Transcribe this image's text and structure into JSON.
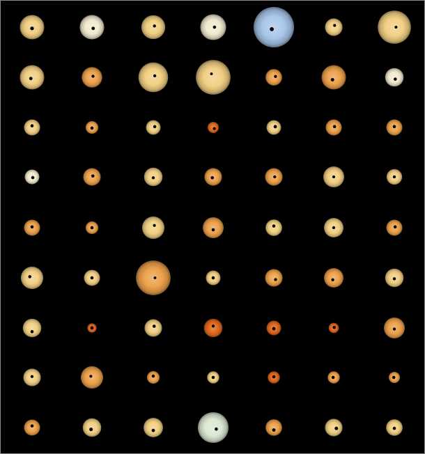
{
  "grid": {
    "rows": 9,
    "columns": 7
  },
  "palette": {
    "background": "#000000",
    "transit_dot": "#000000",
    "star_colors": {
      "yellow": "#f1cf84",
      "orange": "#eca14c",
      "red_orange": "#e2681c",
      "pale": "#f2ead0",
      "blue": "#a9c7ea",
      "mint": "#dbe8d2"
    }
  },
  "stars": [
    [
      {
        "size": 0.5,
        "color": "yellow",
        "dot": [
          0.5,
          0.55
        ],
        "dot_size": 0.6
      },
      {
        "size": 0.5,
        "color": "pale",
        "dot": [
          0.55,
          0.55
        ],
        "dot_size": 0.5
      },
      {
        "size": 0.49,
        "color": "yellow",
        "dot": [
          0.55,
          0.45
        ],
        "dot_size": 0.4
      },
      {
        "size": 0.53,
        "color": "pale",
        "dot": [
          0.55,
          0.5
        ],
        "dot_size": 0.45
      },
      {
        "size": 0.83,
        "color": "blue",
        "dot": [
          0.45,
          0.55
        ],
        "dot_size": 0.7
      },
      {
        "size": 0.36,
        "color": "yellow",
        "dot": [
          0.55,
          0.4
        ],
        "dot_size": 0.4
      },
      {
        "size": 0.68,
        "color": "yellow",
        "dot": [
          0.55,
          0.5
        ],
        "dot_size": 0.35
      }
    ],
    [
      {
        "size": 0.5,
        "color": "yellow",
        "dot": [
          0.45,
          0.55
        ],
        "dot_size": 0.5
      },
      {
        "size": 0.42,
        "color": "orange",
        "dot": [
          0.55,
          0.45
        ],
        "dot_size": 0.4
      },
      {
        "size": 0.61,
        "color": "yellow",
        "dot": [
          0.55,
          0.45
        ],
        "dot_size": 0.4
      },
      {
        "size": 0.71,
        "color": "yellow",
        "dot": [
          0.45,
          0.4
        ],
        "dot_size": 0.3
      },
      {
        "size": 0.34,
        "color": "orange",
        "dot": [
          0.6,
          0.45
        ],
        "dot_size": 0.4
      },
      {
        "size": 0.5,
        "color": "orange",
        "dot": [
          0.45,
          0.6
        ],
        "dot_size": 0.5
      },
      {
        "size": 0.38,
        "color": "pale",
        "dot": [
          0.55,
          0.6
        ],
        "dot_size": 0.45
      }
    ],
    [
      {
        "size": 0.33,
        "color": "yellow",
        "dot": [
          0.5,
          0.4
        ],
        "dot_size": 0.45
      },
      {
        "size": 0.26,
        "color": "orange",
        "dot": [
          0.5,
          0.55
        ],
        "dot_size": 0.45
      },
      {
        "size": 0.3,
        "color": "yellow",
        "dot": [
          0.6,
          0.45
        ],
        "dot_size": 0.45
      },
      {
        "size": 0.23,
        "color": "red_orange",
        "dot": [
          0.6,
          0.6
        ],
        "dot_size": 0.4
      },
      {
        "size": 0.3,
        "color": "yellow",
        "dot": [
          0.6,
          0.45
        ],
        "dot_size": 0.5
      },
      {
        "size": 0.33,
        "color": "orange",
        "dot": [
          0.55,
          0.45
        ],
        "dot_size": 0.45
      },
      {
        "size": 0.33,
        "color": "orange",
        "dot": [
          0.5,
          0.45
        ],
        "dot_size": 0.45
      }
    ],
    [
      {
        "size": 0.3,
        "color": "pale",
        "dot": [
          0.55,
          0.55
        ],
        "dot_size": 0.45
      },
      {
        "size": 0.36,
        "color": "orange",
        "dot": [
          0.55,
          0.45
        ],
        "dot_size": 0.45
      },
      {
        "size": 0.38,
        "color": "yellow",
        "dot": [
          0.5,
          0.55
        ],
        "dot_size": 0.4
      },
      {
        "size": 0.36,
        "color": "orange",
        "dot": [
          0.45,
          0.55
        ],
        "dot_size": 0.45
      },
      {
        "size": 0.36,
        "color": "orange",
        "dot": [
          0.55,
          0.5
        ],
        "dot_size": 0.4
      },
      {
        "size": 0.43,
        "color": "yellow",
        "dot": [
          0.5,
          0.5
        ],
        "dot_size": 0.35
      },
      {
        "size": 0.32,
        "color": "yellow",
        "dot": [
          0.5,
          0.5
        ],
        "dot_size": 0.4
      }
    ],
    [
      {
        "size": 0.33,
        "color": "orange",
        "dot": [
          0.5,
          0.45
        ],
        "dot_size": 0.45
      },
      {
        "size": 0.26,
        "color": "orange",
        "dot": [
          0.5,
          0.5
        ],
        "dot_size": 0.45
      },
      {
        "size": 0.46,
        "color": "yellow",
        "dot": [
          0.55,
          0.4
        ],
        "dot_size": 0.35
      },
      {
        "size": 0.43,
        "color": "orange",
        "dot": [
          0.5,
          0.6
        ],
        "dot_size": 0.45
      },
      {
        "size": 0.34,
        "color": "yellow",
        "dot": [
          0.5,
          0.4
        ],
        "dot_size": 0.45
      },
      {
        "size": 0.4,
        "color": "yellow",
        "dot": [
          0.5,
          0.5
        ],
        "dot_size": 0.4
      },
      {
        "size": 0.33,
        "color": "orange",
        "dot": [
          0.55,
          0.45
        ],
        "dot_size": 0.45
      }
    ],
    [
      {
        "size": 0.46,
        "color": "yellow",
        "dot": [
          0.4,
          0.45
        ],
        "dot_size": 0.45
      },
      {
        "size": 0.33,
        "color": "yellow",
        "dot": [
          0.5,
          0.5
        ],
        "dot_size": 0.45
      },
      {
        "size": 0.71,
        "color": "orange",
        "dot": [
          0.55,
          0.5
        ],
        "dot_size": 0.3
      },
      {
        "size": 0.3,
        "color": "yellow",
        "dot": [
          0.5,
          0.5
        ],
        "dot_size": 0.45
      },
      {
        "size": 0.36,
        "color": "orange",
        "dot": [
          0.6,
          0.6
        ],
        "dot_size": 0.4
      },
      {
        "size": 0.4,
        "color": "orange",
        "dot": [
          0.45,
          0.6
        ],
        "dot_size": 0.4
      },
      {
        "size": 0.38,
        "color": "yellow",
        "dot": [
          0.5,
          0.55
        ],
        "dot_size": 0.4
      }
    ],
    [
      {
        "size": 0.38,
        "color": "yellow",
        "dot": [
          0.5,
          0.7
        ],
        "dot_size": 0.45
      },
      {
        "size": 0.19,
        "color": "red_orange",
        "dot": [
          0.5,
          0.5
        ],
        "dot_size": 0.5
      },
      {
        "size": 0.36,
        "color": "yellow",
        "dot": [
          0.55,
          0.4
        ],
        "dot_size": 0.45
      },
      {
        "size": 0.38,
        "color": "red_orange",
        "dot": [
          0.5,
          0.4
        ],
        "dot_size": 0.4
      },
      {
        "size": 0.3,
        "color": "red_orange",
        "dot": [
          0.5,
          0.55
        ],
        "dot_size": 0.5
      },
      {
        "size": 0.21,
        "color": "red_orange",
        "dot": [
          0.55,
          0.45
        ],
        "dot_size": 0.45
      },
      {
        "size": 0.43,
        "color": "orange",
        "dot": [
          0.5,
          0.55
        ],
        "dot_size": 0.4
      }
    ],
    [
      {
        "size": 0.36,
        "color": "yellow",
        "dot": [
          0.5,
          0.45
        ],
        "dot_size": 0.4
      },
      {
        "size": 0.46,
        "color": "orange",
        "dot": [
          0.45,
          0.45
        ],
        "dot_size": 0.35
      },
      {
        "size": 0.26,
        "color": "orange",
        "dot": [
          0.5,
          0.4
        ],
        "dot_size": 0.45
      },
      {
        "size": 0.25,
        "color": "yellow",
        "dot": [
          0.5,
          0.5
        ],
        "dot_size": 0.45
      },
      {
        "size": 0.25,
        "color": "red_orange",
        "dot": [
          0.5,
          0.45
        ],
        "dot_size": 0.45
      },
      {
        "size": 0.25,
        "color": "orange",
        "dot": [
          0.45,
          0.5
        ],
        "dot_size": 0.45
      },
      {
        "size": 0.23,
        "color": "orange",
        "dot": [
          0.45,
          0.5
        ],
        "dot_size": 0.45
      }
    ],
    [
      {
        "size": 0.33,
        "color": "orange",
        "dot": [
          0.5,
          0.4
        ],
        "dot_size": 0.45
      },
      {
        "size": 0.38,
        "color": "yellow",
        "dot": [
          0.45,
          0.6
        ],
        "dot_size": 0.55
      },
      {
        "size": 0.4,
        "color": "yellow",
        "dot": [
          0.5,
          0.65
        ],
        "dot_size": 0.5
      },
      {
        "size": 0.63,
        "color": "mint",
        "dot": [
          0.6,
          0.55
        ],
        "dot_size": 0.45
      },
      {
        "size": 0.34,
        "color": "orange",
        "dot": [
          0.5,
          0.65
        ],
        "dot_size": 0.5
      },
      {
        "size": 0.36,
        "color": "yellow",
        "dot": [
          0.65,
          0.55
        ],
        "dot_size": 0.55
      },
      {
        "size": 0.34,
        "color": "yellow",
        "dot": [
          0.5,
          0.55
        ],
        "dot_size": 0.45
      }
    ]
  ]
}
